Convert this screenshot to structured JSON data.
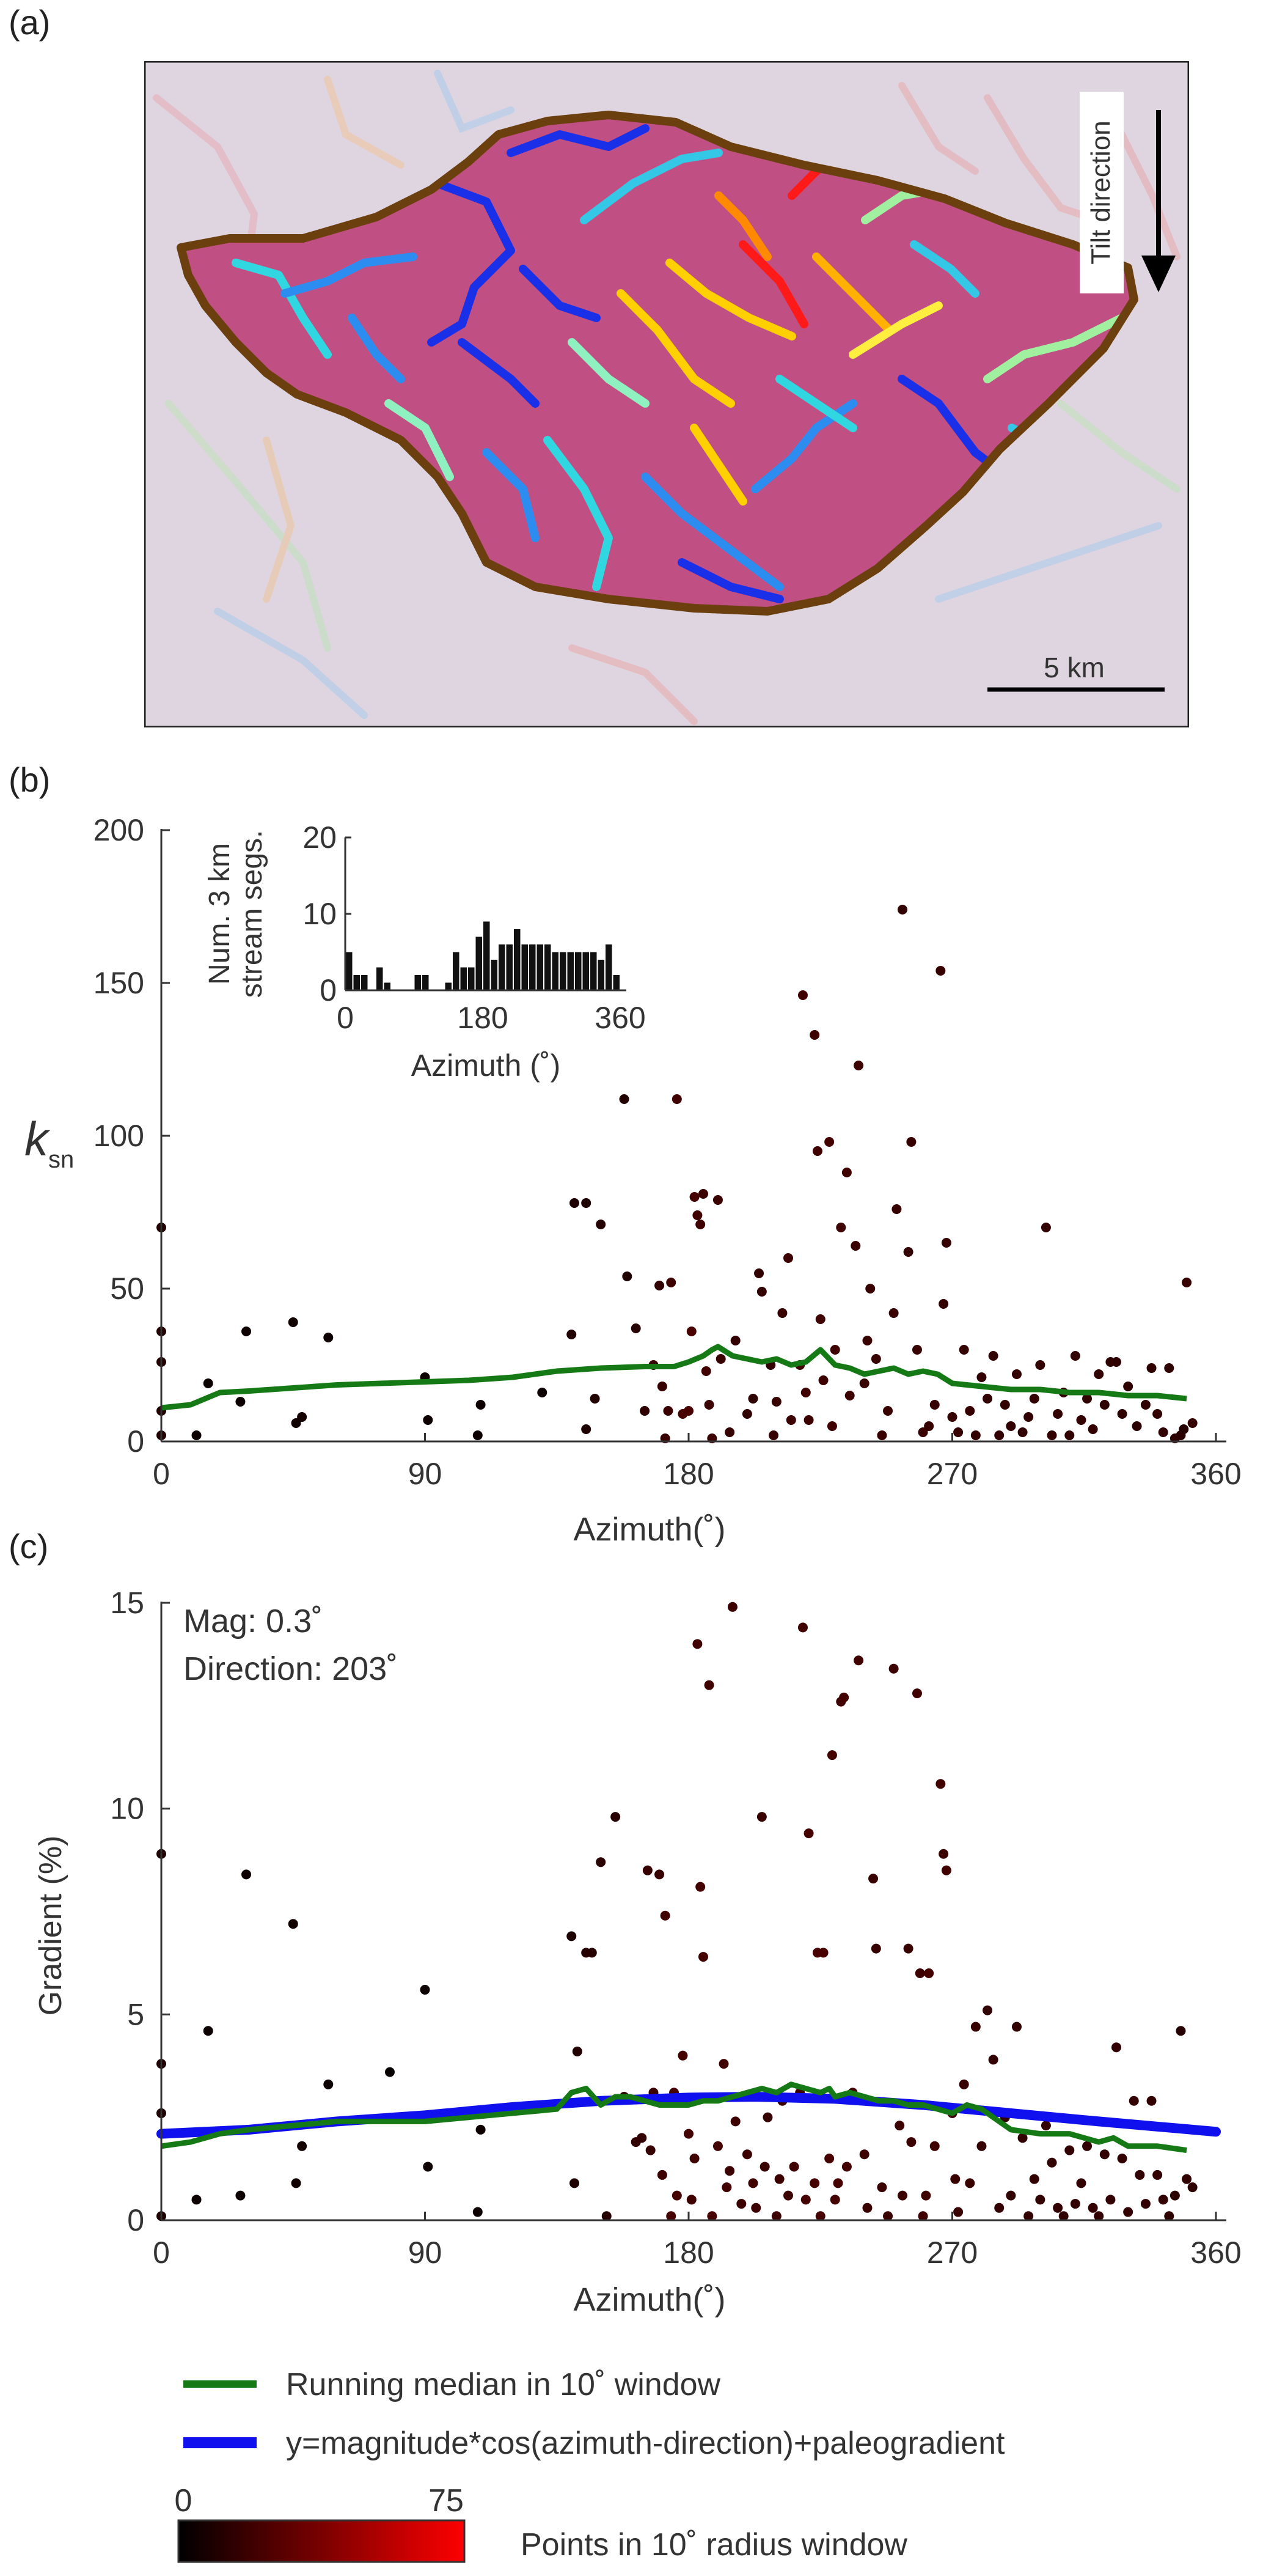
{
  "panels": {
    "a": {
      "label": "(a)",
      "tilt_label": "Tilt direction",
      "scale_label": "5 km"
    },
    "b": {
      "label": "(b)"
    },
    "c": {
      "label": "(c)",
      "mag_text": "Mag: 0.3˚",
      "dir_text": "Direction: 203˚"
    }
  },
  "legend": {
    "median_label": "Running median in 10˚ window",
    "fit_label": "y=magnitude*cos(azimuth-direction)+paleogradient",
    "colorbar_min": "0",
    "colorbar_max": "75",
    "colorbar_label": "Points in 10˚ radius window"
  },
  "colors": {
    "median": "#157a15",
    "fit": "#1010ee",
    "outline": "#6b3f0e",
    "basin_fill": "#c04f83"
  },
  "chart_data": [
    {
      "id": "ksn",
      "type": "scatter",
      "xlabel": "Azimuth(˚)",
      "ylabel": "k",
      "ylabel_sub": "sn",
      "xlim": [
        0,
        360
      ],
      "ylim": [
        0,
        200
      ],
      "xticks": [
        0,
        90,
        180,
        270,
        360
      ],
      "yticks": [
        0,
        50,
        100,
        150,
        200
      ],
      "points": [
        [
          0,
          70
        ],
        [
          0,
          36
        ],
        [
          0,
          26
        ],
        [
          0,
          10
        ],
        [
          0,
          2
        ],
        [
          12,
          2
        ],
        [
          16,
          19
        ],
        [
          27,
          13
        ],
        [
          29,
          36
        ],
        [
          45,
          39
        ],
        [
          46,
          6
        ],
        [
          48,
          8
        ],
        [
          57,
          34
        ],
        [
          90,
          21
        ],
        [
          91,
          7
        ],
        [
          108,
          2
        ],
        [
          109,
          12
        ],
        [
          130,
          16
        ],
        [
          140,
          35
        ],
        [
          141,
          78
        ],
        [
          145,
          78
        ],
        [
          145,
          4
        ],
        [
          148,
          14
        ],
        [
          150,
          71
        ],
        [
          158,
          112
        ],
        [
          159,
          54
        ],
        [
          162,
          37
        ],
        [
          165,
          10
        ],
        [
          168,
          25
        ],
        [
          170,
          51
        ],
        [
          171,
          18
        ],
        [
          172,
          1
        ],
        [
          173,
          10
        ],
        [
          174,
          52
        ],
        [
          176,
          112
        ],
        [
          178,
          9
        ],
        [
          180,
          10
        ],
        [
          181,
          36
        ],
        [
          182,
          80
        ],
        [
          183,
          74
        ],
        [
          184,
          71
        ],
        [
          185,
          81
        ],
        [
          186,
          23
        ],
        [
          187,
          12
        ],
        [
          188,
          1
        ],
        [
          190,
          79
        ],
        [
          191,
          27
        ],
        [
          194,
          3
        ],
        [
          196,
          33
        ],
        [
          200,
          9
        ],
        [
          202,
          14
        ],
        [
          204,
          55
        ],
        [
          205,
          49
        ],
        [
          208,
          25
        ],
        [
          209,
          2
        ],
        [
          210,
          13
        ],
        [
          212,
          42
        ],
        [
          214,
          60
        ],
        [
          215,
          7
        ],
        [
          218,
          25
        ],
        [
          219,
          146
        ],
        [
          220,
          16
        ],
        [
          221,
          7
        ],
        [
          223,
          133
        ],
        [
          224,
          95
        ],
        [
          225,
          40
        ],
        [
          226,
          20
        ],
        [
          228,
          98
        ],
        [
          229,
          5
        ],
        [
          230,
          30
        ],
        [
          232,
          70
        ],
        [
          234,
          88
        ],
        [
          235,
          15
        ],
        [
          237,
          64
        ],
        [
          238,
          123
        ],
        [
          240,
          19
        ],
        [
          241,
          33
        ],
        [
          242,
          50
        ],
        [
          244,
          27
        ],
        [
          246,
          2
        ],
        [
          248,
          10
        ],
        [
          250,
          42
        ],
        [
          251,
          76
        ],
        [
          253,
          174
        ],
        [
          255,
          62
        ],
        [
          256,
          98
        ],
        [
          258,
          30
        ],
        [
          260,
          3
        ],
        [
          262,
          5
        ],
        [
          264,
          12
        ],
        [
          266,
          154
        ],
        [
          267,
          45
        ],
        [
          268,
          65
        ],
        [
          270,
          8
        ],
        [
          272,
          3
        ],
        [
          274,
          30
        ],
        [
          276,
          10
        ],
        [
          278,
          2
        ],
        [
          280,
          21
        ],
        [
          282,
          14
        ],
        [
          284,
          28
        ],
        [
          286,
          2
        ],
        [
          288,
          12
        ],
        [
          290,
          5
        ],
        [
          292,
          22
        ],
        [
          294,
          3
        ],
        [
          296,
          8
        ],
        [
          298,
          14
        ],
        [
          300,
          25
        ],
        [
          302,
          70
        ],
        [
          304,
          2
        ],
        [
          306,
          9
        ],
        [
          308,
          16
        ],
        [
          310,
          2
        ],
        [
          312,
          28
        ],
        [
          314,
          7
        ],
        [
          316,
          14
        ],
        [
          318,
          4
        ],
        [
          320,
          22
        ],
        [
          322,
          12
        ],
        [
          324,
          26
        ],
        [
          326,
          26
        ],
        [
          328,
          9
        ],
        [
          330,
          18
        ],
        [
          333,
          5
        ],
        [
          336,
          12
        ],
        [
          338,
          24
        ],
        [
          340,
          9
        ],
        [
          342,
          3
        ],
        [
          344,
          24
        ],
        [
          346,
          1
        ],
        [
          348,
          2
        ],
        [
          349,
          4
        ],
        [
          350,
          52
        ],
        [
          352,
          6
        ]
      ],
      "median": {
        "name": "Running median in 10˚ window",
        "x": [
          0,
          10,
          20,
          30,
          45,
          60,
          75,
          90,
          105,
          120,
          135,
          150,
          165,
          175,
          180,
          185,
          188,
          190,
          195,
          200,
          205,
          210,
          215,
          220,
          225,
          228,
          230,
          235,
          240,
          245,
          250,
          255,
          260,
          265,
          270,
          280,
          290,
          300,
          310,
          320,
          330,
          340,
          350
        ],
        "y": [
          11,
          12,
          16,
          16.5,
          17.5,
          18.5,
          19,
          19.5,
          20,
          21,
          23,
          24,
          24.5,
          24.5,
          26,
          28,
          30,
          31,
          28,
          27,
          26,
          27,
          25,
          26,
          30,
          27,
          25,
          24,
          22,
          23,
          24,
          22,
          23,
          22,
          19,
          18,
          17,
          17,
          16,
          16,
          15,
          15,
          14
        ]
      }
    },
    {
      "id": "gradient",
      "type": "scatter",
      "xlabel": "Azimuth(˚)",
      "ylabel": "Gradient (%)",
      "xlim": [
        0,
        360
      ],
      "ylim": [
        0,
        15
      ],
      "xticks": [
        0,
        90,
        180,
        270,
        360
      ],
      "yticks": [
        0,
        5,
        10,
        15
      ],
      "points": [
        [
          0,
          8.9
        ],
        [
          0,
          3.8
        ],
        [
          0,
          2.6
        ],
        [
          0,
          0.1
        ],
        [
          12,
          0.5
        ],
        [
          16,
          4.6
        ],
        [
          27,
          0.6
        ],
        [
          29,
          8.4
        ],
        [
          45,
          7.2
        ],
        [
          46,
          0.9
        ],
        [
          48,
          1.8
        ],
        [
          57,
          3.3
        ],
        [
          78,
          3.6
        ],
        [
          90,
          5.6
        ],
        [
          91,
          1.3
        ],
        [
          108,
          0.2
        ],
        [
          109,
          2.2
        ],
        [
          140,
          6.9
        ],
        [
          141,
          0.9
        ],
        [
          142,
          4.1
        ],
        [
          145,
          6.5
        ],
        [
          147,
          6.5
        ],
        [
          150,
          8.7
        ],
        [
          152,
          0.1
        ],
        [
          155,
          9.8
        ],
        [
          158,
          3.0
        ],
        [
          162,
          1.9
        ],
        [
          164,
          2.0
        ],
        [
          166,
          8.5
        ],
        [
          167,
          1.7
        ],
        [
          168,
          3.1
        ],
        [
          170,
          8.4
        ],
        [
          171,
          1.1
        ],
        [
          172,
          7.4
        ],
        [
          174,
          0.1
        ],
        [
          175,
          3.1
        ],
        [
          176,
          0.6
        ],
        [
          178,
          4.0
        ],
        [
          180,
          2.1
        ],
        [
          181,
          0.5
        ],
        [
          182,
          1.5
        ],
        [
          183,
          14.0
        ],
        [
          184,
          8.1
        ],
        [
          185,
          6.4
        ],
        [
          187,
          13.0
        ],
        [
          188,
          0.1
        ],
        [
          190,
          1.8
        ],
        [
          192,
          3.8
        ],
        [
          193,
          0.8
        ],
        [
          194,
          1.2
        ],
        [
          195,
          14.9
        ],
        [
          196,
          2.4
        ],
        [
          198,
          0.4
        ],
        [
          200,
          1.6
        ],
        [
          202,
          0.9
        ],
        [
          203,
          0.3
        ],
        [
          205,
          9.8
        ],
        [
          206,
          1.3
        ],
        [
          207,
          2.5
        ],
        [
          210,
          0.1
        ],
        [
          211,
          1.0
        ],
        [
          212,
          2.9
        ],
        [
          214,
          0.6
        ],
        [
          216,
          1.3
        ],
        [
          218,
          3.1
        ],
        [
          219,
          14.4
        ],
        [
          220,
          0.5
        ],
        [
          221,
          9.4
        ],
        [
          223,
          0.9
        ],
        [
          224,
          6.5
        ],
        [
          225,
          0.1
        ],
        [
          226,
          6.5
        ],
        [
          228,
          1.5
        ],
        [
          229,
          11.3
        ],
        [
          230,
          0.5
        ],
        [
          231,
          0.9
        ],
        [
          232,
          12.6
        ],
        [
          233,
          12.7
        ],
        [
          234,
          1.3
        ],
        [
          236,
          3.1
        ],
        [
          238,
          13.6
        ],
        [
          240,
          1.6
        ],
        [
          241,
          0.3
        ],
        [
          243,
          8.3
        ],
        [
          244,
          6.6
        ],
        [
          246,
          0.8
        ],
        [
          248,
          0.1
        ],
        [
          250,
          13.4
        ],
        [
          252,
          2.3
        ],
        [
          253,
          0.6
        ],
        [
          255,
          6.6
        ],
        [
          256,
          1.9
        ],
        [
          258,
          12.8
        ],
        [
          259,
          6.0
        ],
        [
          260,
          0.1
        ],
        [
          261,
          0.6
        ],
        [
          262,
          6.0
        ],
        [
          264,
          1.8
        ],
        [
          266,
          10.6
        ],
        [
          267,
          8.9
        ],
        [
          268,
          8.5
        ],
        [
          270,
          2.6
        ],
        [
          271,
          1.0
        ],
        [
          272,
          0.2
        ],
        [
          274,
          3.3
        ],
        [
          276,
          0.9
        ],
        [
          278,
          4.7
        ],
        [
          280,
          1.8
        ],
        [
          282,
          5.1
        ],
        [
          284,
          3.9
        ],
        [
          286,
          0.3
        ],
        [
          288,
          2.5
        ],
        [
          290,
          0.6
        ],
        [
          292,
          4.7
        ],
        [
          294,
          2.0
        ],
        [
          296,
          0.1
        ],
        [
          298,
          1.0
        ],
        [
          300,
          0.5
        ],
        [
          302,
          2.3
        ],
        [
          304,
          1.4
        ],
        [
          306,
          0.3
        ],
        [
          308,
          0.1
        ],
        [
          310,
          1.7
        ],
        [
          312,
          0.4
        ],
        [
          314,
          0.9
        ],
        [
          316,
          1.8
        ],
        [
          318,
          0.3
        ],
        [
          320,
          0.1
        ],
        [
          322,
          1.6
        ],
        [
          324,
          0.5
        ],
        [
          326,
          4.2
        ],
        [
          328,
          1.5
        ],
        [
          330,
          0.2
        ],
        [
          332,
          2.9
        ],
        [
          334,
          1.1
        ],
        [
          336,
          0.4
        ],
        [
          338,
          2.9
        ],
        [
          340,
          1.1
        ],
        [
          342,
          0.5
        ],
        [
          344,
          0.1
        ],
        [
          346,
          0.6
        ],
        [
          348,
          4.6
        ],
        [
          350,
          1.0
        ],
        [
          352,
          0.8
        ]
      ],
      "median": {
        "name": "Running median in 10˚ window",
        "x": [
          0,
          10,
          20,
          30,
          45,
          60,
          75,
          90,
          105,
          120,
          135,
          140,
          145,
          150,
          155,
          160,
          170,
          180,
          185,
          190,
          195,
          200,
          205,
          210,
          215,
          220,
          225,
          228,
          230,
          235,
          240,
          245,
          250,
          255,
          260,
          265,
          270,
          275,
          280,
          290,
          300,
          310,
          315,
          320,
          325,
          330,
          340,
          350
        ],
        "y": [
          1.8,
          1.9,
          2.1,
          2.2,
          2.3,
          2.4,
          2.4,
          2.4,
          2.5,
          2.6,
          2.7,
          3.1,
          3.2,
          2.8,
          3.0,
          3.0,
          2.8,
          2.8,
          2.9,
          2.9,
          3.0,
          3.1,
          3.2,
          3.1,
          3.3,
          3.2,
          3.1,
          3.2,
          3.0,
          3.1,
          3.0,
          2.9,
          2.9,
          2.8,
          2.8,
          2.7,
          2.6,
          2.8,
          2.7,
          2.2,
          2.1,
          2.1,
          2.0,
          1.9,
          2.0,
          1.8,
          1.8,
          1.7
        ]
      },
      "fit": {
        "name": "y=magnitude*cos(azimuth-direction)+paleogradient",
        "magnitude": 0.3,
        "direction": 203,
        "curve_x": [
          0,
          30,
          60,
          90,
          120,
          150,
          180,
          203,
          230,
          260,
          290,
          320,
          360
        ],
        "curve_y": [
          2.1,
          2.2,
          2.4,
          2.55,
          2.75,
          2.9,
          2.98,
          3.0,
          2.95,
          2.8,
          2.6,
          2.4,
          2.15
        ]
      }
    }
  ]
}
